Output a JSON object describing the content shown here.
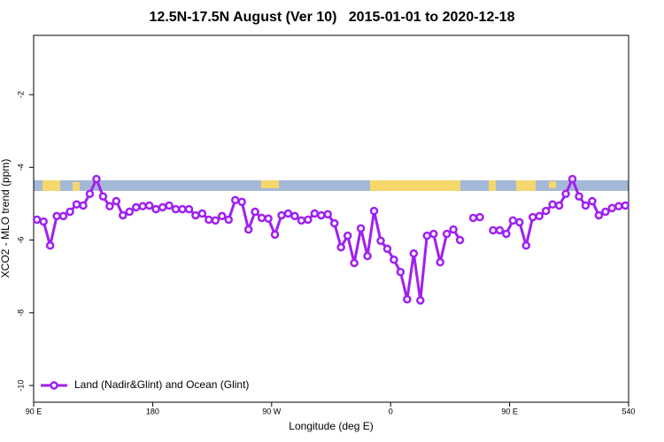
{
  "chart_data": {
    "type": "line",
    "title": "12.5N-17.5N August (Ver 10)   2015-01-01 to 2020-12-18",
    "xlabel": "Longitude (deg E)",
    "ylabel": "XCO2 - MLO trend (ppm)",
    "x": [
      92.5,
      97.5,
      102.5,
      107.5,
      112.5,
      117.5,
      122.5,
      127.5,
      132.5,
      137.5,
      142.5,
      147.5,
      152.5,
      157.5,
      162.5,
      167.5,
      172.5,
      177.5,
      182.5,
      187.5,
      192.5,
      197.5,
      202.5,
      207.5,
      212.5,
      217.5,
      222.5,
      227.5,
      232.5,
      237.5,
      242.5,
      247.5,
      252.5,
      257.5,
      262.5,
      267.5,
      272.5,
      277.5,
      282.5,
      287.5,
      292.5,
      297.5,
      302.5,
      307.5,
      312.5,
      317.5,
      322.5,
      327.5,
      332.5,
      337.5,
      342.5,
      347.5,
      352.5,
      357.5,
      362.5,
      367.5,
      372.5,
      377.5,
      382.5,
      387.5,
      392.5,
      397.5,
      402.5,
      407.5,
      412.5,
      417.5,
      422.5,
      427.5,
      432.5,
      437.5,
      442.5,
      447.5,
      452.5,
      457.5,
      462.5,
      467.5,
      472.5,
      477.5,
      482.5,
      487.5,
      492.5,
      497.5,
      502.5,
      507.5,
      512.5,
      517.5,
      522.5,
      527.5,
      532.5,
      537.5
    ],
    "series": [
      {
        "name": "Land (Nadir&Glint) and Ocean (Glint)",
        "color": "#a020f0",
        "values": [
          -5.44,
          -5.49,
          -6.15,
          -5.34,
          -5.34,
          -5.22,
          -5.02,
          -5.05,
          -4.73,
          -4.32,
          -4.8,
          -5.07,
          -4.93,
          -5.32,
          -5.22,
          -5.1,
          -5.07,
          -5.05,
          -5.15,
          -5.1,
          -5.05,
          -5.15,
          -5.15,
          -5.15,
          -5.32,
          -5.27,
          -5.44,
          -5.46,
          -5.34,
          -5.44,
          -4.9,
          -4.95,
          -5.71,
          -5.22,
          -5.39,
          -5.41,
          -5.85,
          -5.32,
          -5.27,
          -5.34,
          -5.46,
          -5.44,
          -5.27,
          -5.32,
          -5.29,
          -5.54,
          -6.2,
          -5.88,
          -6.63,
          -5.68,
          -6.44,
          -5.2,
          -6.02,
          -6.24,
          -6.54,
          -6.88,
          -7.63,
          -6.37,
          -7.66,
          -5.88,
          -5.83,
          -6.61,
          -5.83,
          -5.71,
          -6.0,
          null,
          -5.39,
          -5.37,
          null,
          -5.73,
          -5.73,
          -5.83,
          -5.46,
          -5.51,
          -6.15,
          -5.37,
          -5.34,
          -5.2,
          -5.02,
          -5.05,
          -4.73,
          -4.32,
          -4.8,
          -5.05,
          -4.93,
          -5.32,
          -5.22,
          -5.12,
          -5.07,
          -5.05
        ]
      }
    ],
    "xlim": [
      90,
      540
    ],
    "xticks": [
      {
        "value": 90,
        "label": "90 E"
      },
      180,
      {
        "value": 270,
        "label": "90 W"
      },
      {
        "value": 360,
        "label": "0"
      },
      {
        "value": 450,
        "label": "90 E"
      },
      540
    ],
    "ylim": [
      -10.46,
      -0.37
    ],
    "yticks": [
      -10,
      -8,
      -6,
      -4,
      -2
    ],
    "legend": "bottom-left"
  }
}
